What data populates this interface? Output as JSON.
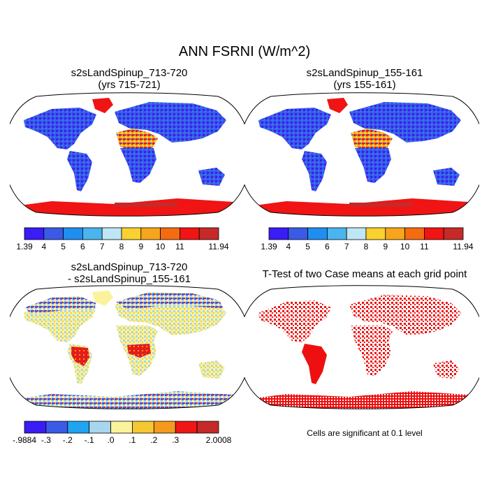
{
  "title": "ANN FSRNI (W/m^2)",
  "panels": [
    {
      "title_line1": "s2sLandSpinup_713-720",
      "title_line2": "(yrs 715-721)"
    },
    {
      "title_line1": "s2sLandSpinup_155-161",
      "title_line2": "(yrs 155-161)"
    },
    {
      "title_line1": "s2sLandSpinup_713-720",
      "title_line2": "- s2sLandSpinup_155-161"
    },
    {
      "title_line1": "T-Test of two Case means at each grid point",
      "title_line2": ""
    }
  ],
  "significance_note": "Cells are significant at 0.1 level",
  "chart_data": [
    {
      "type": "heatmap",
      "projection": "Robinson",
      "title": "s2sLandSpinup_713-720 (yrs 715-721)",
      "colorbar": {
        "labels": [
          "1.39",
          "4",
          "5",
          "6",
          "7",
          "8",
          "9",
          "10",
          "11",
          "11.94"
        ],
        "colors": [
          "#3a1cf5",
          "#3b5ae6",
          "#1f8ef0",
          "#4ab4ee",
          "#bfe6f4",
          "#fad12e",
          "#f7a51c",
          "#f56b10",
          "#f01414",
          "#c62a28"
        ]
      }
    },
    {
      "type": "heatmap",
      "projection": "Robinson",
      "title": "s2sLandSpinup_155-161 (yrs 155-161)",
      "colorbar": {
        "labels": [
          "1.39",
          "4",
          "5",
          "6",
          "7",
          "8",
          "9",
          "10",
          "11",
          "11.94"
        ],
        "colors": [
          "#3a1cf5",
          "#3b5ae6",
          "#1f8ef0",
          "#4ab4ee",
          "#bfe6f4",
          "#fad12e",
          "#f7a51c",
          "#f56b10",
          "#f01414",
          "#c62a28"
        ]
      }
    },
    {
      "type": "heatmap",
      "projection": "Robinson",
      "title": "s2sLandSpinup_713-720 - s2sLandSpinup_155-161",
      "colorbar": {
        "labels": [
          "-.9884",
          "-.3",
          "-.2",
          "-.1",
          ".0",
          ".1",
          ".2",
          ".3",
          "2.0008"
        ],
        "colors": [
          "#3a1cf5",
          "#3b5ae6",
          "#1ea4f0",
          "#a7d6ee",
          "#fbf39b",
          "#f5c832",
          "#f59a1d",
          "#f01616",
          "#c62a28"
        ]
      }
    },
    {
      "type": "heatmap",
      "projection": "Robinson",
      "title": "T-Test of two Case means at each grid point",
      "significant_color": "#ee1010",
      "note": "Cells are significant at 0.1 level"
    }
  ]
}
